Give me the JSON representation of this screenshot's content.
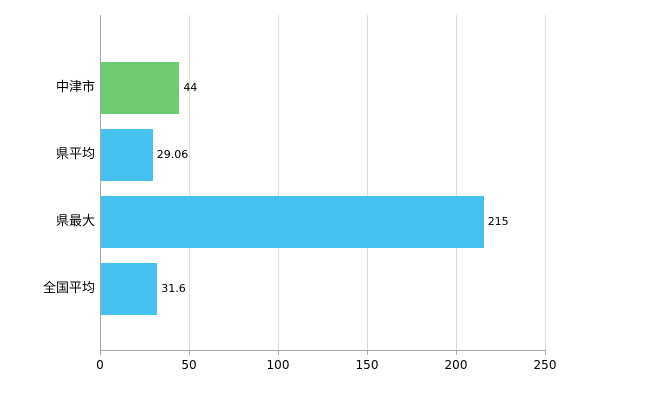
{
  "chart_data": {
    "type": "bar",
    "orientation": "horizontal",
    "title": "",
    "xlabel": "",
    "ylabel": "",
    "categories": [
      "中津市",
      "県平均",
      "県最大",
      "全国平均"
    ],
    "values": [
      44,
      29.06,
      215,
      31.6
    ],
    "value_labels": [
      "44",
      "29.06",
      "215",
      "31.6"
    ],
    "bar_colors": [
      "#6ECB71",
      "#45C2F0",
      "#45C2F0",
      "#45C2F0"
    ],
    "xlim": [
      0,
      250
    ],
    "x_ticks": [
      0,
      50,
      100,
      150,
      200,
      250
    ],
    "x_tick_labels": [
      "0",
      "50",
      "100",
      "150",
      "200",
      "250"
    ],
    "grid": true,
    "legend": "none",
    "colors": {
      "grid": "#dcdcdc",
      "axis": "#a6a6a6",
      "text": "#000000",
      "background": "#ffffff"
    }
  }
}
